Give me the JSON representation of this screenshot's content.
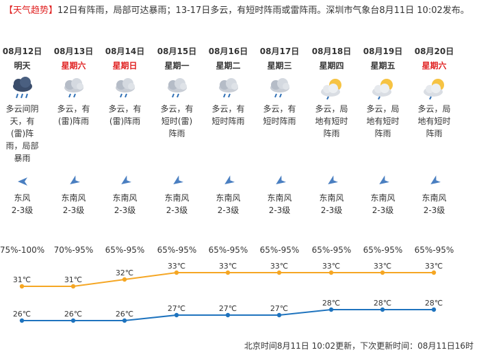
{
  "notice": {
    "tag": "【天气趋势】",
    "text": "12日有阵雨，局部可达暴雨；13-17日多云，有短时阵雨或雷阵雨。深圳市气象台8月11日 10:02发布。"
  },
  "days": [
    {
      "date": "08月12日",
      "week": "明天",
      "week_red": false,
      "icon": "rain-cloud-icon",
      "desc": "多云间阴天，有(雷)阵雨，局部暴雨",
      "wind_l1": "东风",
      "wind_l2": "2-3级",
      "humidity": "75%-100%",
      "high": "31℃",
      "low": "26℃"
    },
    {
      "date": "08月13日",
      "week": "星期六",
      "week_red": true,
      "icon": "cloud-shower-icon",
      "desc": "多云，有(雷)阵雨",
      "wind_l1": "东南风",
      "wind_l2": "2-3级",
      "humidity": "70%-95%",
      "high": "31℃",
      "low": "26℃"
    },
    {
      "date": "08月14日",
      "week": "星期日",
      "week_red": true,
      "icon": "cloud-shower-icon",
      "desc": "多云，有(雷)阵雨",
      "wind_l1": "东南风",
      "wind_l2": "2-3级",
      "humidity": "65%-95%",
      "high": "32℃",
      "low": "26℃"
    },
    {
      "date": "08月15日",
      "week": "星期一",
      "week_red": false,
      "icon": "cloud-shower-icon",
      "desc": "多云，有短时(雷)阵雨",
      "wind_l1": "东南风",
      "wind_l2": "2-3级",
      "humidity": "65%-95%",
      "high": "33℃",
      "low": "27℃"
    },
    {
      "date": "08月16日",
      "week": "星期二",
      "week_red": false,
      "icon": "cloud-shower-icon",
      "desc": "多云，有短时阵雨",
      "wind_l1": "东南风",
      "wind_l2": "2-3级",
      "humidity": "65%-95%",
      "high": "33℃",
      "low": "27℃"
    },
    {
      "date": "08月17日",
      "week": "星期三",
      "week_red": false,
      "icon": "cloud-shower-icon",
      "desc": "多云，有短时阵雨",
      "wind_l1": "东南风",
      "wind_l2": "2-3级",
      "humidity": "65%-95%",
      "high": "33℃",
      "low": "27℃"
    },
    {
      "date": "08月18日",
      "week": "星期四",
      "week_red": false,
      "icon": "sun-cloud-icon",
      "desc": "多云，局地有短时阵雨",
      "wind_l1": "东南风",
      "wind_l2": "2-3级",
      "humidity": "65%-95%",
      "high": "33℃",
      "low": "28℃"
    },
    {
      "date": "08月19日",
      "week": "星期五",
      "week_red": false,
      "icon": "sun-cloud-icon",
      "desc": "多云，局地有短时阵雨",
      "wind_l1": "东南风",
      "wind_l2": "2-3级",
      "humidity": "65%-95%",
      "high": "33℃",
      "low": "28℃"
    },
    {
      "date": "08月20日",
      "week": "星期六",
      "week_red": true,
      "icon": "sun-cloud-icon",
      "desc": "多云，局地有短时阵雨",
      "wind_l1": "东南风",
      "wind_l2": "2-3级",
      "humidity": "65%-95%",
      "high": "33℃",
      "low": "28℃"
    }
  ],
  "temps": {
    "high": [
      31,
      31,
      32,
      33,
      33,
      33,
      33,
      33,
      33
    ],
    "low": [
      26,
      26,
      26,
      27,
      27,
      27,
      28,
      28,
      28
    ]
  },
  "colors": {
    "high_line": "#f5a623",
    "low_line": "#1e73be",
    "red": "#e02020",
    "wind_arrow": "#4a7fc1"
  },
  "footer": "北京时间8月11日 10:02更新，下次更新时间：08月11日16时"
}
